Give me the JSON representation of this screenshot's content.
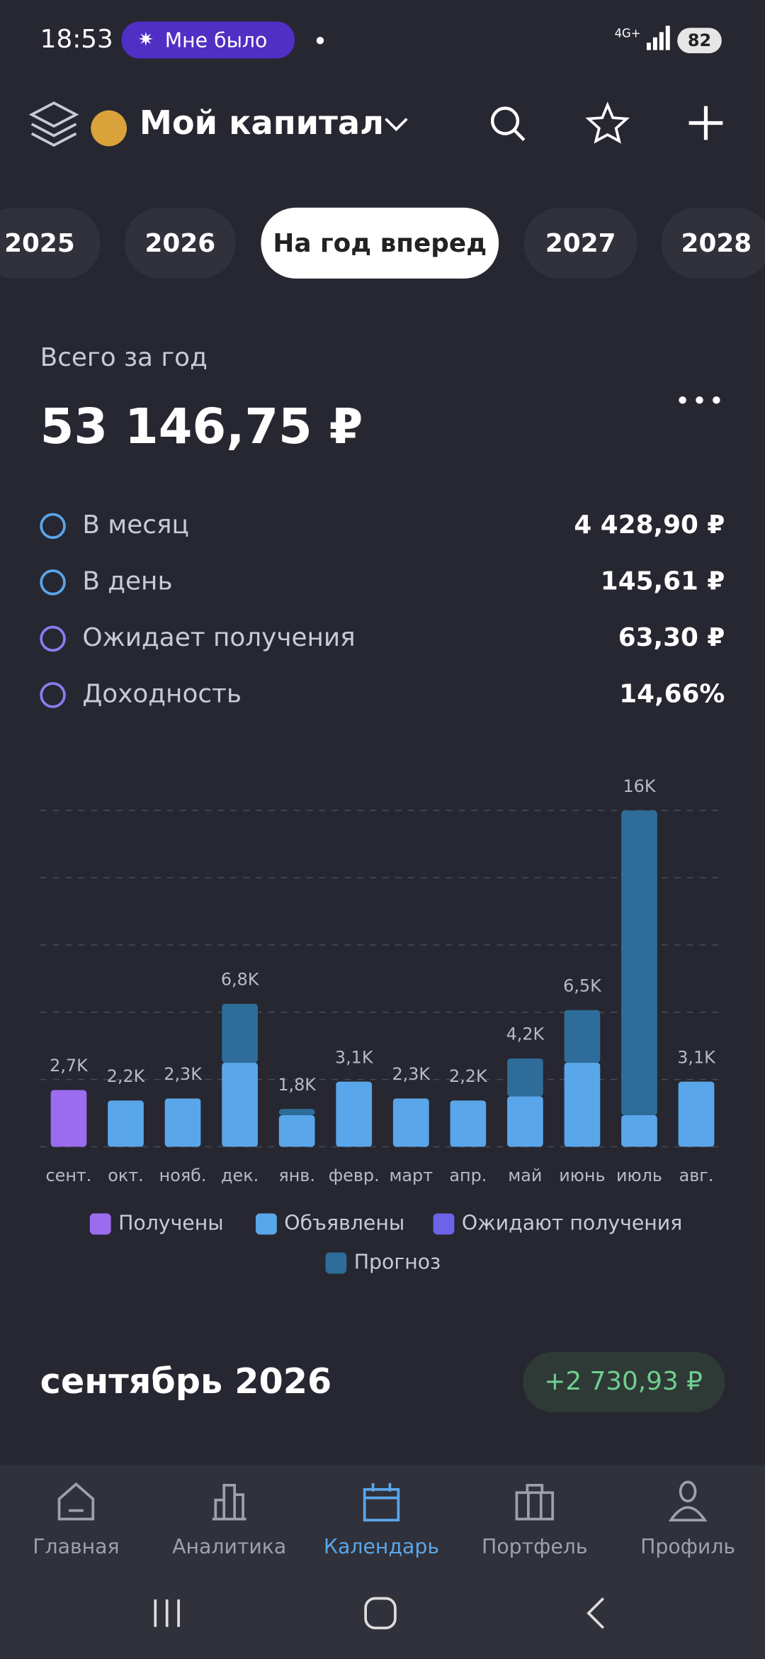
{
  "status_bar": {
    "time": "18:53",
    "pill": "Мне было",
    "network": "4G+",
    "battery": "82"
  },
  "header": {
    "title": "Мой капитал"
  },
  "tabs": {
    "items": [
      "2025",
      "2026",
      "На год вперед",
      "2027",
      "2028"
    ],
    "active": 2
  },
  "summary": {
    "label": "Всего за год",
    "total": "53 146,75 ₽"
  },
  "stats": [
    {
      "label": "В месяц",
      "value": "4 428,90 ₽"
    },
    {
      "label": "В день",
      "value": "145,61 ₽"
    },
    {
      "label": "Ожидает получения",
      "value": "63,30 ₽"
    },
    {
      "label": "Доходность",
      "value": "14,66%"
    }
  ],
  "chart": {
    "type": "bar",
    "stacked": true,
    "categories": [
      "сент.",
      "окт.",
      "нояб.",
      "дек.",
      "янв.",
      "февр.",
      "март",
      "апр.",
      "май",
      "июнь",
      "июль",
      "авг."
    ],
    "series": [
      {
        "name": "Получены",
        "color": "#9b6cf0",
        "values": [
          2700,
          0,
          0,
          0,
          0,
          0,
          0,
          0,
          0,
          0,
          0,
          0
        ]
      },
      {
        "name": "Объявлены",
        "color": "#5aa6ea",
        "values": [
          0,
          2200,
          2300,
          4000,
          1500,
          3100,
          2300,
          2200,
          2400,
          4000,
          1500,
          3100
        ]
      },
      {
        "name": "Ожидают получения",
        "color": "#6b63e8",
        "values": [
          0,
          0,
          0,
          0,
          0,
          0,
          0,
          0,
          0,
          0,
          0,
          0
        ]
      },
      {
        "name": "Прогноз",
        "color": "#2e6c99",
        "values": [
          0,
          0,
          0,
          2800,
          300,
          0,
          0,
          0,
          1800,
          2500,
          14500,
          0
        ]
      }
    ],
    "totals": [
      2700,
      2200,
      2300,
      6800,
      1800,
      3100,
      2300,
      2200,
      4200,
      6500,
      16000,
      3100
    ],
    "total_labels": [
      "2,7K",
      "2,2K",
      "2,3K",
      "6,8K",
      "1,8K",
      "3,1K",
      "2,3K",
      "2,2K",
      "4,2K",
      "6,5K",
      "16K",
      "3,1K"
    ],
    "ylim": [
      0,
      16000
    ],
    "yticks": [
      0,
      3200,
      6400,
      9600,
      12800,
      16000
    ],
    "grid": true
  },
  "section": {
    "title": "сентябрь 2026",
    "amount": "+2 730,93 ₽"
  },
  "nav": {
    "items": [
      "Главная",
      "Аналитика",
      "Календарь",
      "Портфель",
      "Профиль"
    ],
    "active": 2
  }
}
